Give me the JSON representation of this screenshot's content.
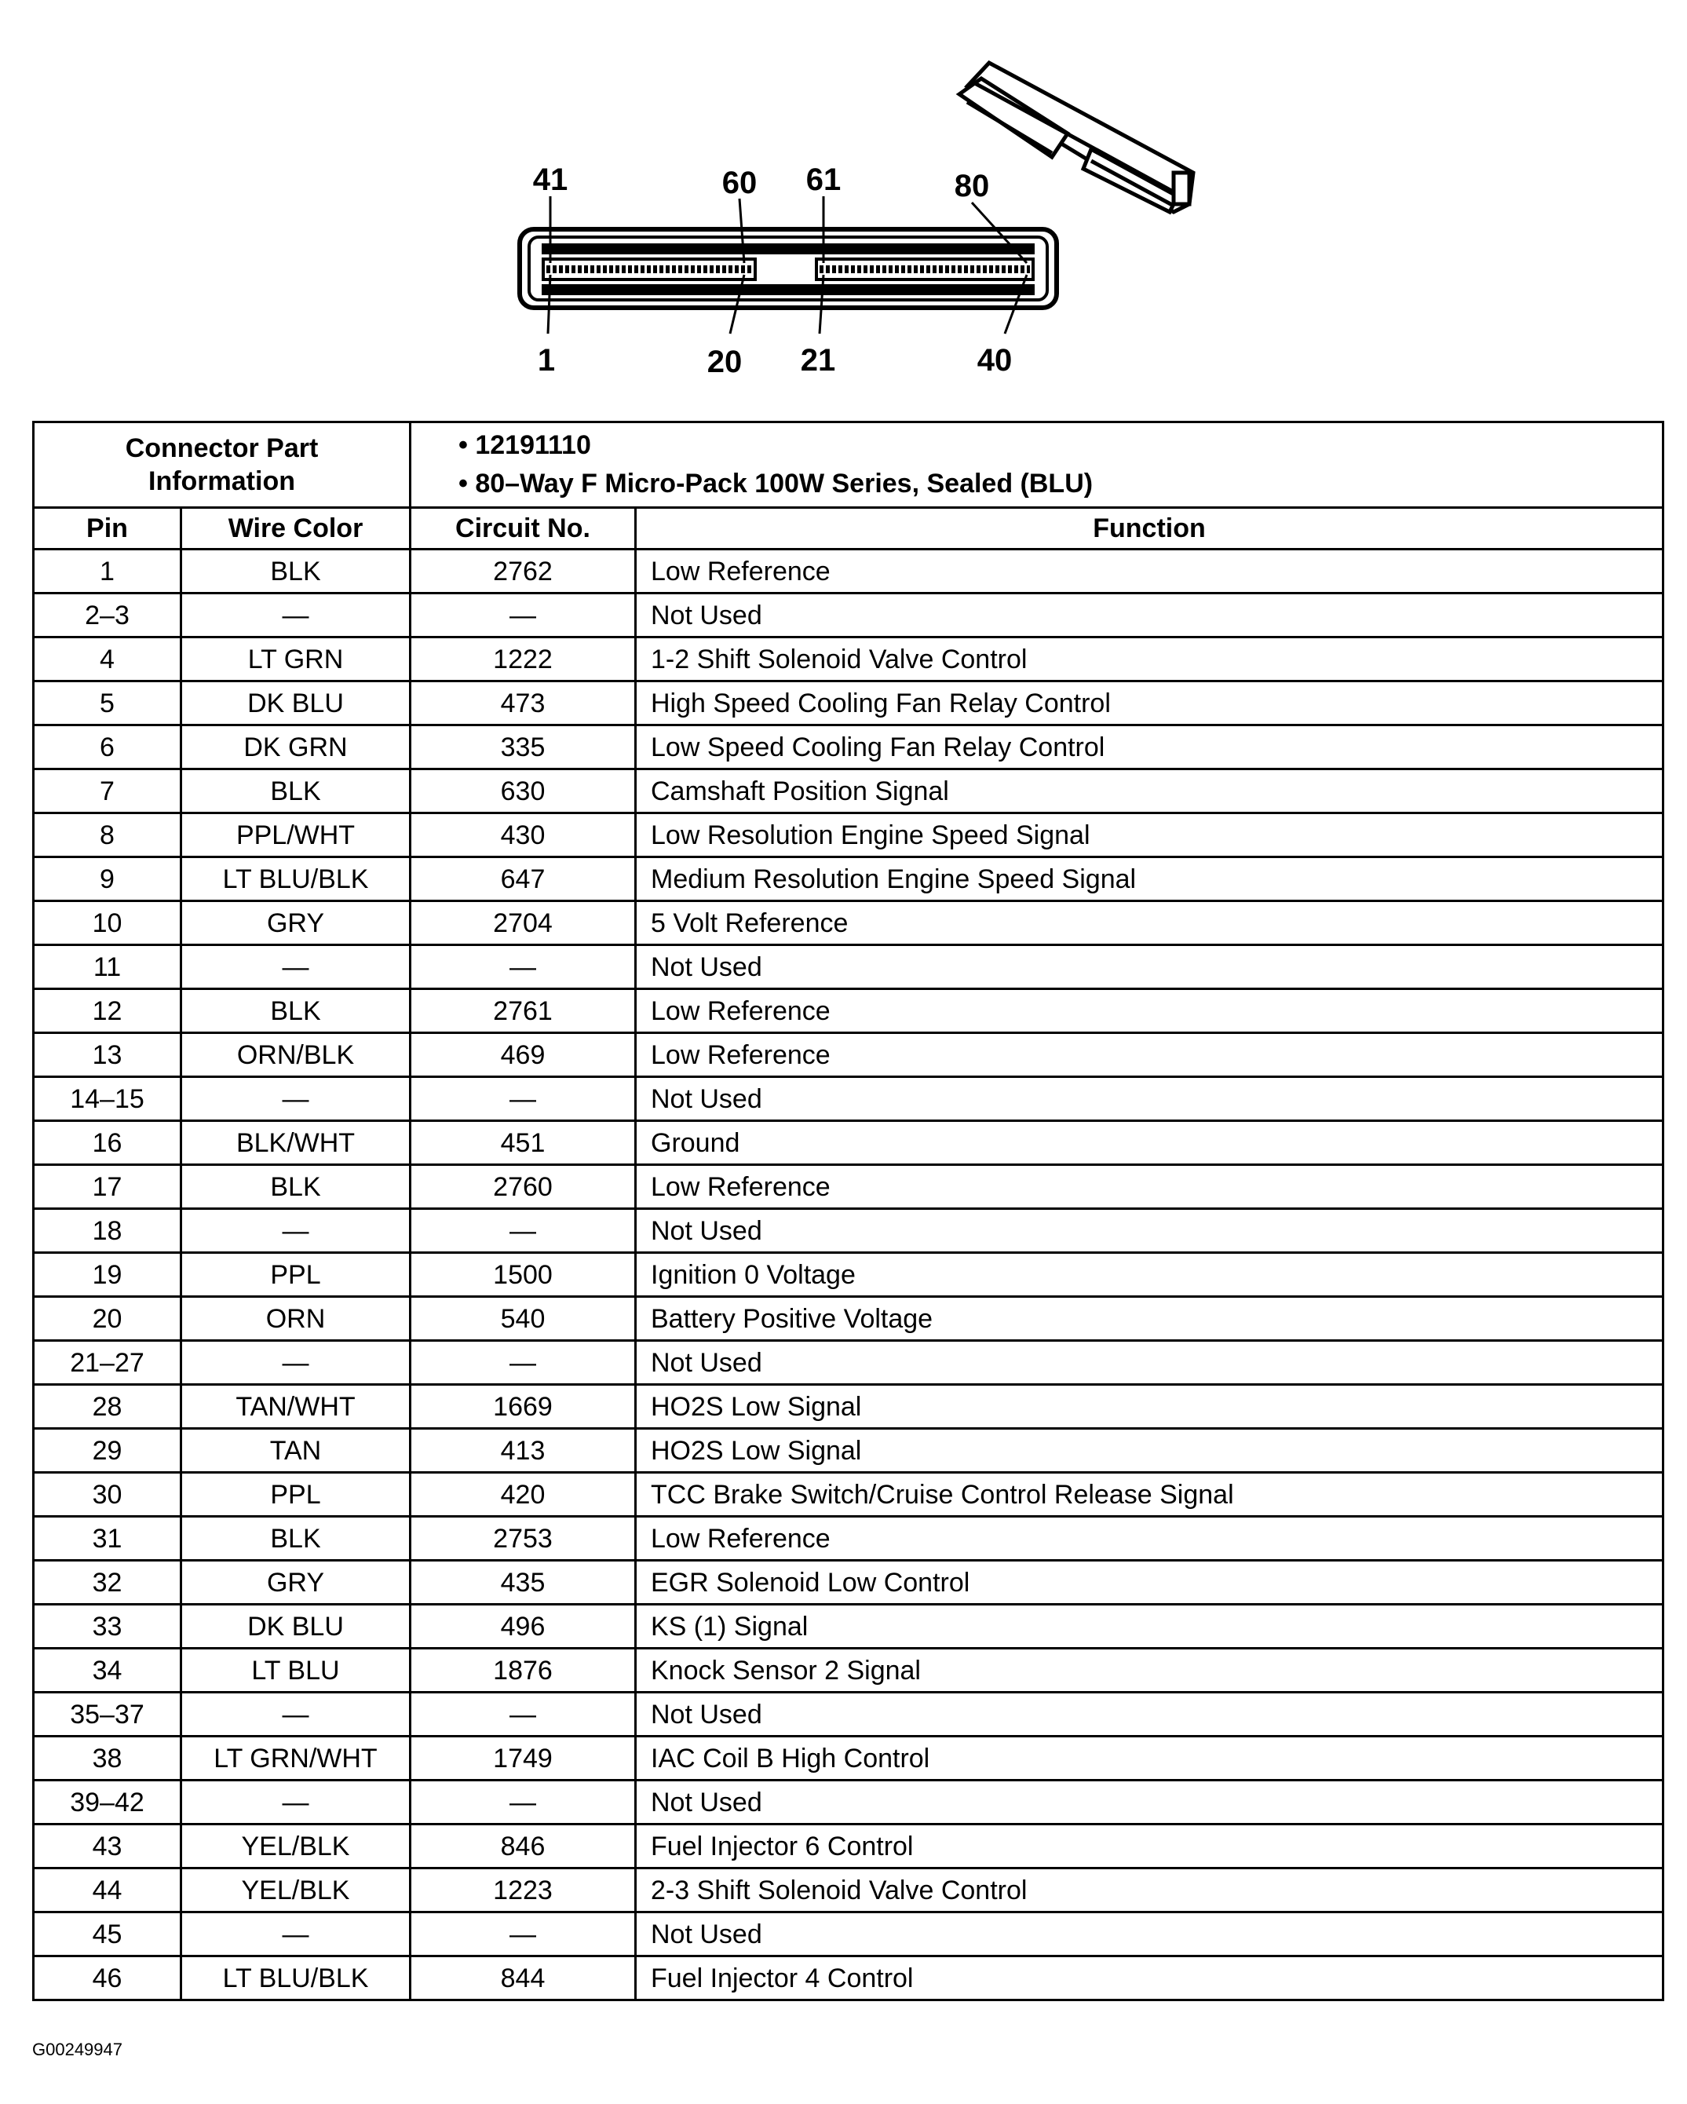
{
  "diagram": {
    "pin_labels_top": [
      "41",
      "60",
      "61",
      "80"
    ],
    "pin_labels_bottom": [
      "1",
      "20",
      "21",
      "40"
    ]
  },
  "connector": {
    "label": "Connector Part Information",
    "label_line1": "Connector Part",
    "label_line2": "Information",
    "info": [
      "• 12191110",
      "• 80–Way F Micro-Pack 100W Series, Sealed (BLU)"
    ]
  },
  "columns": {
    "pin": "Pin",
    "wire_color": "Wire Color",
    "circuit": "Circuit No.",
    "function": "Function"
  },
  "rows": [
    {
      "pin": "1",
      "color": "BLK",
      "circuit": "2762",
      "function": "Low Reference"
    },
    {
      "pin": "2–3",
      "color": "—",
      "circuit": "—",
      "function": "Not Used"
    },
    {
      "pin": "4",
      "color": "LT GRN",
      "circuit": "1222",
      "function": "1-2 Shift Solenoid Valve Control"
    },
    {
      "pin": "5",
      "color": "DK BLU",
      "circuit": "473",
      "function": "High Speed Cooling Fan Relay Control"
    },
    {
      "pin": "6",
      "color": "DK GRN",
      "circuit": "335",
      "function": "Low Speed Cooling Fan Relay Control"
    },
    {
      "pin": "7",
      "color": "BLK",
      "circuit": "630",
      "function": "Camshaft Position Signal"
    },
    {
      "pin": "8",
      "color": "PPL/WHT",
      "circuit": "430",
      "function": "Low Resolution Engine Speed Signal"
    },
    {
      "pin": "9",
      "color": "LT BLU/BLK",
      "circuit": "647",
      "function": "Medium Resolution Engine Speed Signal"
    },
    {
      "pin": "10",
      "color": "GRY",
      "circuit": "2704",
      "function": "5 Volt Reference"
    },
    {
      "pin": "11",
      "color": "—",
      "circuit": "—",
      "function": "Not Used"
    },
    {
      "pin": "12",
      "color": "BLK",
      "circuit": "2761",
      "function": "Low Reference"
    },
    {
      "pin": "13",
      "color": "ORN/BLK",
      "circuit": "469",
      "function": "Low Reference"
    },
    {
      "pin": "14–15",
      "color": "—",
      "circuit": "—",
      "function": "Not Used"
    },
    {
      "pin": "16",
      "color": "BLK/WHT",
      "circuit": "451",
      "function": "Ground"
    },
    {
      "pin": "17",
      "color": "BLK",
      "circuit": "2760",
      "function": "Low Reference"
    },
    {
      "pin": "18",
      "color": "—",
      "circuit": "—",
      "function": "Not Used"
    },
    {
      "pin": "19",
      "color": "PPL",
      "circuit": "1500",
      "function": "Ignition 0 Voltage"
    },
    {
      "pin": "20",
      "color": "ORN",
      "circuit": "540",
      "function": "Battery Positive Voltage"
    },
    {
      "pin": "21–27",
      "color": "—",
      "circuit": "—",
      "function": "Not Used"
    },
    {
      "pin": "28",
      "color": "TAN/WHT",
      "circuit": "1669",
      "function": "HO2S Low Signal"
    },
    {
      "pin": "29",
      "color": "TAN",
      "circuit": "413",
      "function": "HO2S Low Signal"
    },
    {
      "pin": "30",
      "color": "PPL",
      "circuit": "420",
      "function": "TCC Brake Switch/Cruise Control Release Signal"
    },
    {
      "pin": "31",
      "color": "BLK",
      "circuit": "2753",
      "function": "Low Reference"
    },
    {
      "pin": "32",
      "color": "GRY",
      "circuit": "435",
      "function": "EGR Solenoid Low Control"
    },
    {
      "pin": "33",
      "color": "DK BLU",
      "circuit": "496",
      "function": "KS (1) Signal"
    },
    {
      "pin": "34",
      "color": "LT BLU",
      "circuit": "1876",
      "function": "Knock Sensor 2 Signal"
    },
    {
      "pin": "35–37",
      "color": "—",
      "circuit": "—",
      "function": "Not Used"
    },
    {
      "pin": "38",
      "color": "LT GRN/WHT",
      "circuit": "1749",
      "function": "IAC Coil B High Control"
    },
    {
      "pin": "39–42",
      "color": "—",
      "circuit": "—",
      "function": "Not Used"
    },
    {
      "pin": "43",
      "color": "YEL/BLK",
      "circuit": "846",
      "function": "Fuel Injector 6 Control"
    },
    {
      "pin": "44",
      "color": "YEL/BLK",
      "circuit": "1223",
      "function": "2-3 Shift Solenoid Valve Control"
    },
    {
      "pin": "45",
      "color": "—",
      "circuit": "—",
      "function": "Not Used"
    },
    {
      "pin": "46",
      "color": "LT BLU/BLK",
      "circuit": "844",
      "function": "Fuel Injector 4 Control"
    }
  ],
  "footer": {
    "figure_id": "G00249947"
  }
}
